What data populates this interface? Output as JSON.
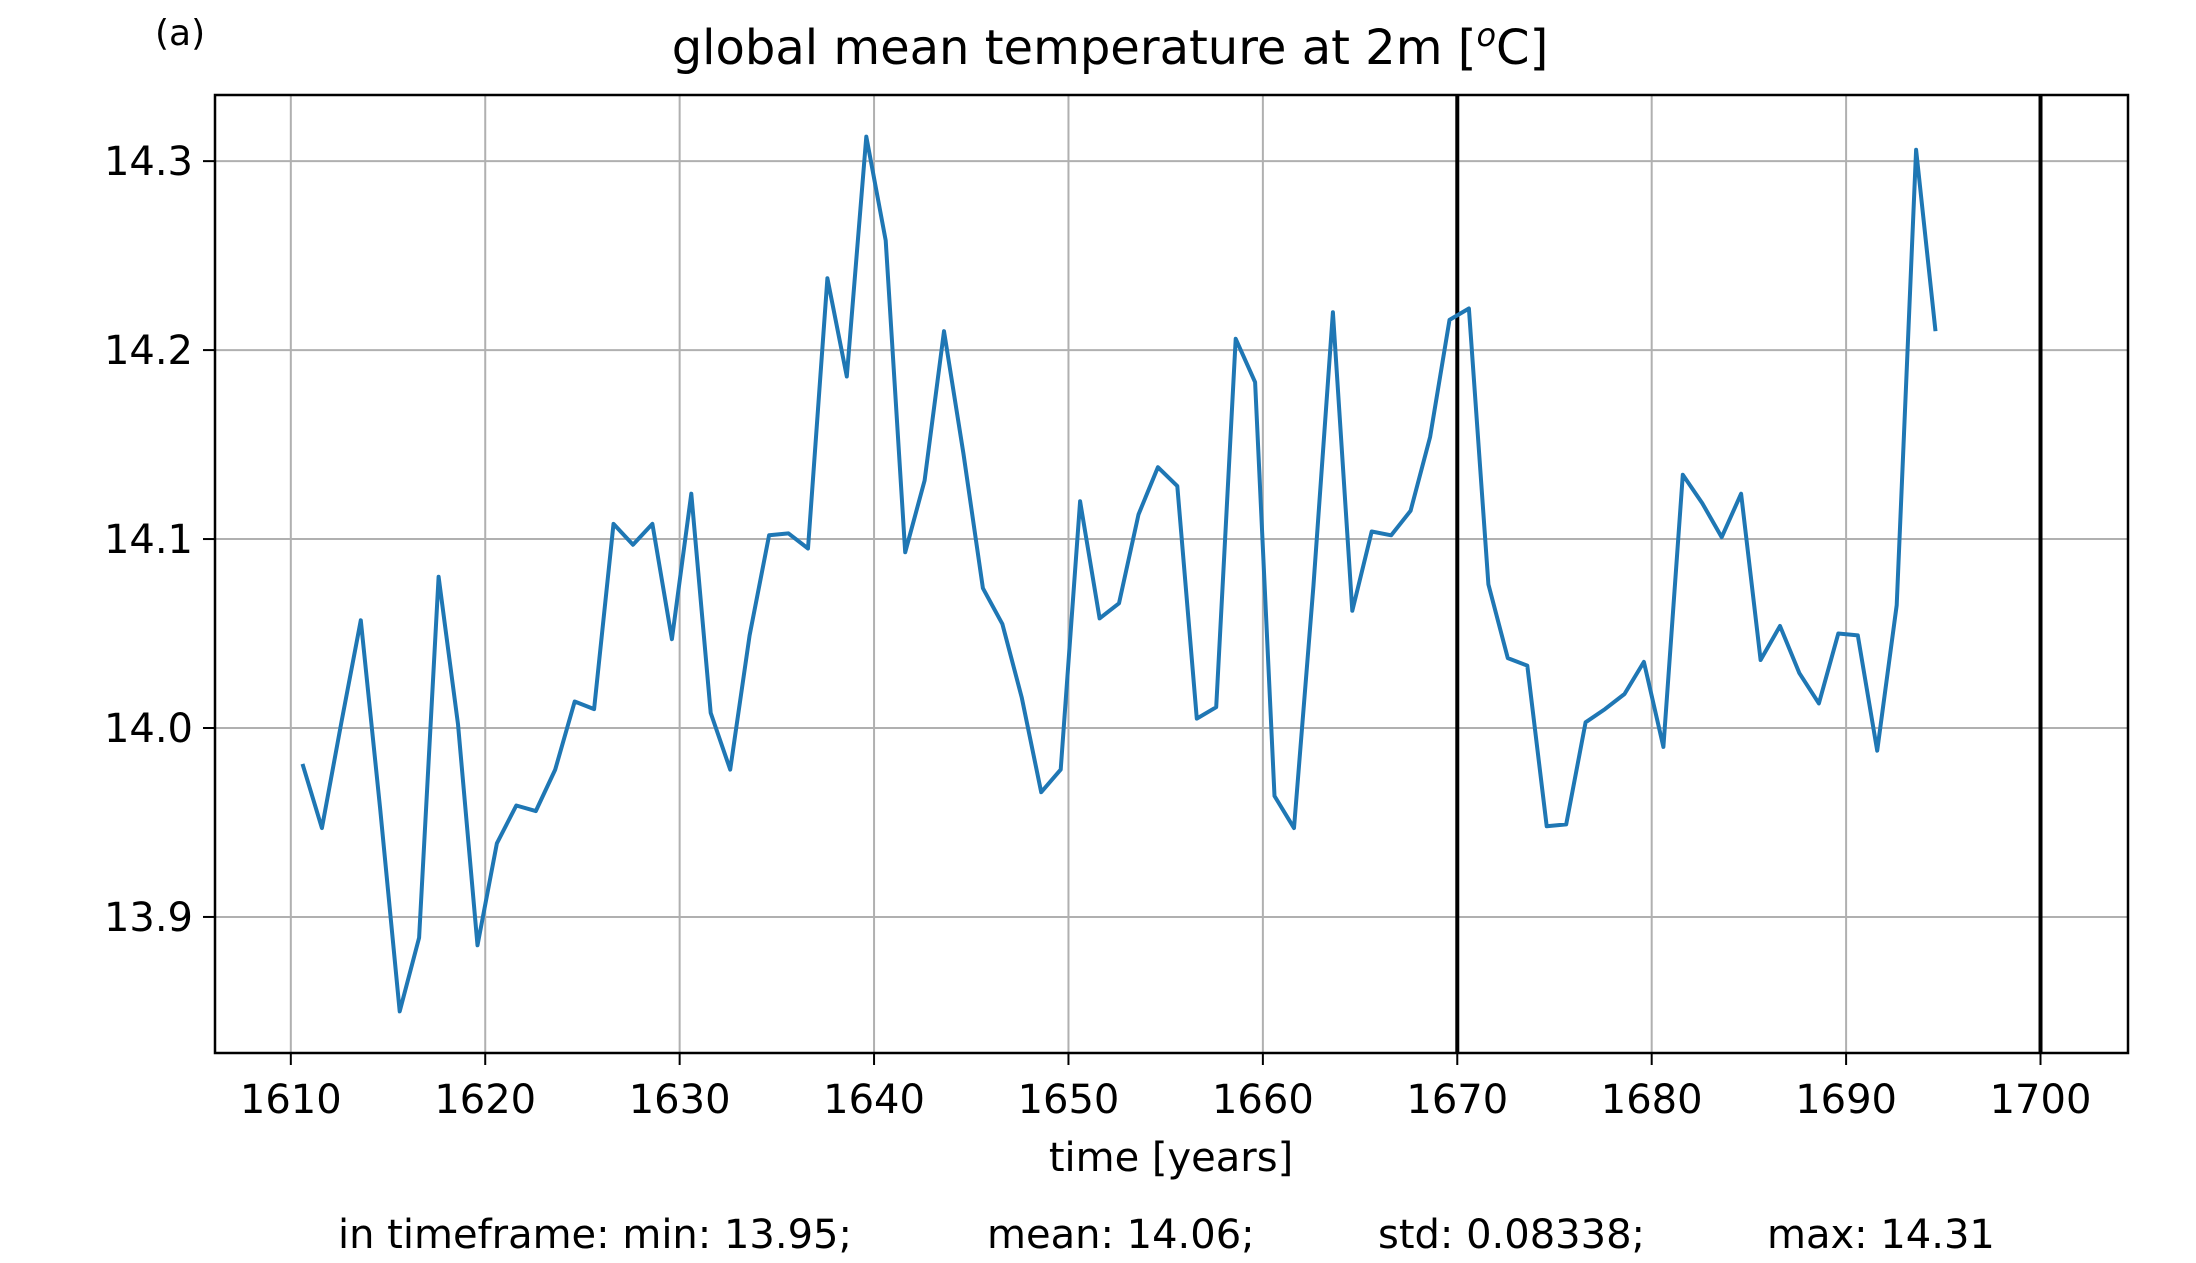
{
  "panel_label": "(a)",
  "chart_data": {
    "type": "line",
    "title": "global mean temperature at 2m [",
    "title_sup": "o",
    "title_tail": "C]",
    "xlabel": "time [years]",
    "ylabel": "",
    "xlim": [
      1606.1,
      1704.5
    ],
    "ylim": [
      13.828,
      14.335
    ],
    "xticks": [
      1610,
      1620,
      1630,
      1640,
      1650,
      1660,
      1670,
      1680,
      1690,
      1700
    ],
    "xtick_labels": [
      "1610",
      "1620",
      "1630",
      "1640",
      "1650",
      "1660",
      "1670",
      "1680",
      "1690",
      "1700"
    ],
    "yticks": [
      13.9,
      14.0,
      14.1,
      14.2,
      14.3
    ],
    "ytick_labels": [
      "13.9",
      "14.0",
      "14.1",
      "14.2",
      "14.3"
    ],
    "grid": true,
    "vlines": [
      1670,
      1700
    ],
    "series": [
      {
        "color": "#1f77b4",
        "x": [
          1610.6,
          1611.6,
          1612.6,
          1613.6,
          1614.6,
          1615.6,
          1616.6,
          1617.6,
          1618.6,
          1619.6,
          1620.6,
          1621.6,
          1622.6,
          1623.6,
          1624.6,
          1625.6,
          1626.6,
          1627.6,
          1628.6,
          1629.6,
          1630.6,
          1631.6,
          1632.6,
          1633.6,
          1634.6,
          1635.6,
          1636.6,
          1637.6,
          1638.6,
          1639.6,
          1640.6,
          1641.6,
          1642.6,
          1643.6,
          1644.6,
          1645.6,
          1646.6,
          1647.6,
          1648.6,
          1649.6,
          1650.6,
          1651.6,
          1652.6,
          1653.6,
          1654.6,
          1655.6,
          1656.6,
          1657.6,
          1658.6,
          1659.6,
          1660.6,
          1661.6,
          1662.6,
          1663.6,
          1664.6,
          1665.6,
          1666.6,
          1667.6,
          1668.6,
          1669.6,
          1670.6,
          1671.6,
          1672.6,
          1673.6,
          1674.6,
          1675.6,
          1676.6,
          1677.6,
          1678.6,
          1679.6,
          1680.6,
          1681.6,
          1682.6,
          1683.6,
          1684.6,
          1685.6,
          1686.6,
          1687.6,
          1688.6,
          1689.6,
          1690.6,
          1691.6,
          1692.6,
          1693.6,
          1694.6
        ],
        "y": [
          13.981,
          13.947,
          14.003,
          14.057,
          13.957,
          13.85,
          13.889,
          14.08,
          14.002,
          13.885,
          13.939,
          13.959,
          13.956,
          13.978,
          14.014,
          14.01,
          14.108,
          14.097,
          14.108,
          14.047,
          14.124,
          14.008,
          13.978,
          14.049,
          14.102,
          14.103,
          14.095,
          14.238,
          14.186,
          14.313,
          14.258,
          14.093,
          14.131,
          14.21,
          14.145,
          14.074,
          14.055,
          14.016,
          13.966,
          13.978,
          14.12,
          14.058,
          14.066,
          14.113,
          14.138,
          14.128,
          14.005,
          14.011,
          14.206,
          14.183,
          13.964,
          13.947,
          14.075,
          14.22,
          14.062,
          14.104,
          14.102,
          14.115,
          14.154,
          14.216,
          14.222,
          14.076,
          14.037,
          14.033,
          13.948,
          13.949,
          14.003,
          14.01,
          14.018,
          14.035,
          13.99,
          14.134,
          14.119,
          14.101,
          14.124,
          14.036,
          14.054,
          14.029,
          14.013,
          14.05,
          14.049,
          13.988,
          14.065,
          14.306,
          14.21
        ]
      }
    ]
  },
  "stats": {
    "min": "in timeframe: min: 13.95;",
    "mean": "mean: 14.06;",
    "std": "std: 0.08338;",
    "max": "max: 14.31"
  }
}
